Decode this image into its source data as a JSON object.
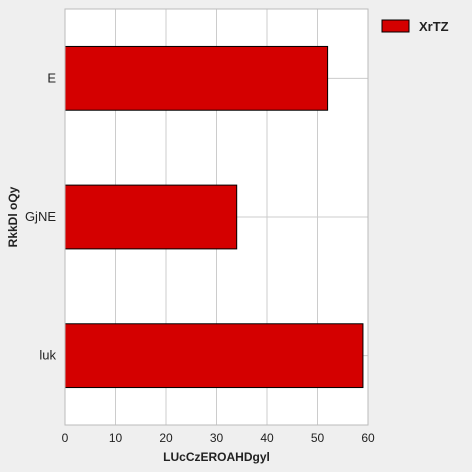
{
  "chart_data": {
    "type": "bar",
    "orientation": "horizontal",
    "categories": [
      "E",
      "GjNE",
      "luk"
    ],
    "series": [
      {
        "name": "XrTZ",
        "values": [
          52,
          34,
          59
        ],
        "color": "#d40000"
      }
    ],
    "xlabel": "LUcCzEROAHDgyl",
    "ylabel": "RkkDl oQy",
    "xlim": [
      0,
      60
    ],
    "xticks": [
      0,
      10,
      20,
      30,
      40,
      50,
      60
    ],
    "grid": true,
    "legend_position": "top-right",
    "plot_background": "#ffffff",
    "page_background": "#efefef",
    "grid_color": "#cccccc"
  }
}
